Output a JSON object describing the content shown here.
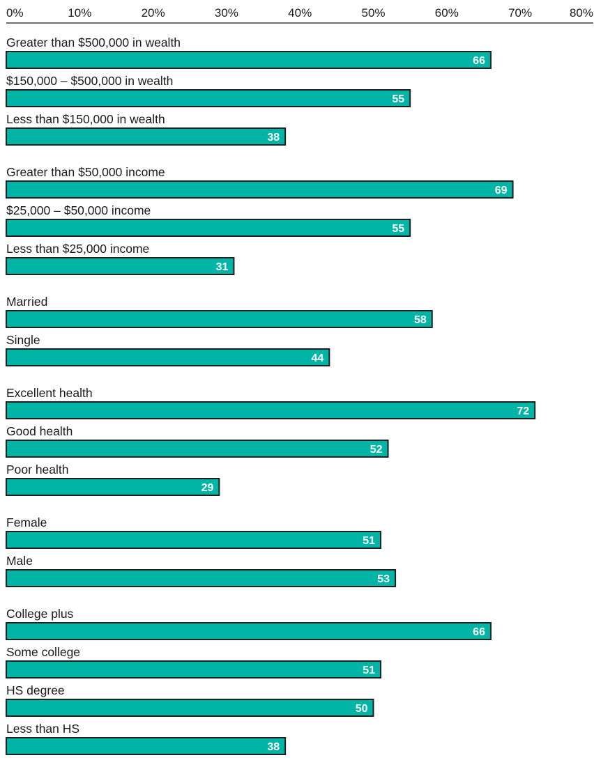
{
  "chart_data": {
    "type": "bar",
    "orientation": "horizontal",
    "xlim": [
      0,
      80
    ],
    "x_ticks": [
      "0%",
      "10%",
      "20%",
      "30%",
      "40%",
      "50%",
      "60%",
      "70%",
      "80%"
    ],
    "axis_position": "top",
    "grid": false,
    "colors": {
      "bar": "#00b5a6",
      "bar_edge": "#1e1e1e",
      "value_label": "#ffffff"
    },
    "groups": [
      {
        "categories": [
          "Greater than $500,000 in wealth",
          "$150,000 – $500,000 in wealth",
          "Less than $150,000 in wealth"
        ],
        "values": [
          66,
          55,
          38
        ]
      },
      {
        "categories": [
          "Greater than $50,000 income",
          "$25,000 – $50,000 income",
          "Less than $25,000 income"
        ],
        "values": [
          69,
          55,
          31
        ]
      },
      {
        "categories": [
          "Married",
          "Single"
        ],
        "values": [
          58,
          44
        ]
      },
      {
        "categories": [
          "Excellent health",
          "Good health",
          "Poor health"
        ],
        "values": [
          72,
          52,
          29
        ]
      },
      {
        "categories": [
          "Female",
          "Male"
        ],
        "values": [
          51,
          53
        ]
      },
      {
        "categories": [
          "College plus",
          "Some college",
          "HS degree",
          "Less than HS"
        ],
        "values": [
          66,
          51,
          50,
          38
        ]
      }
    ]
  }
}
